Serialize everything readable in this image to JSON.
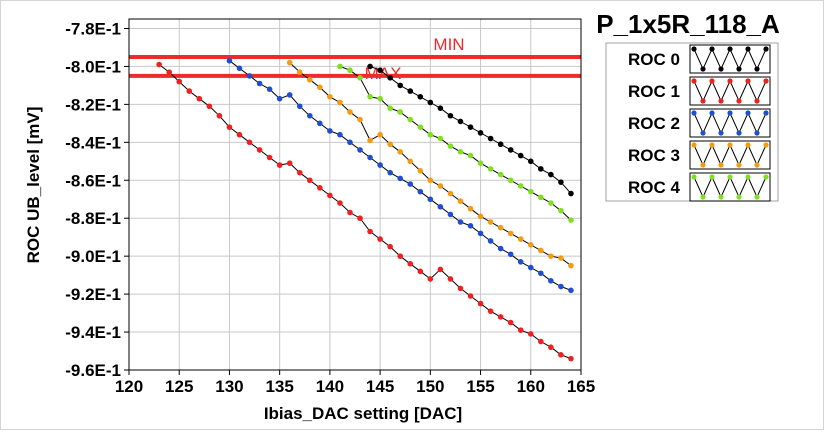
{
  "chart_data": {
    "type": "line",
    "title": "P_1x5R_118_A",
    "xlabel": "Ibias_DAC setting [DAC]",
    "ylabel": "ROC UB_level [mV]",
    "xlim": [
      120,
      165
    ],
    "ylim": [
      -0.96,
      -0.775
    ],
    "x_ticks": [
      "120",
      "125",
      "130",
      "135",
      "140",
      "145",
      "150",
      "155",
      "160",
      "165"
    ],
    "x_tick_values": [
      120,
      125,
      130,
      135,
      140,
      145,
      150,
      155,
      160,
      165
    ],
    "y_ticks": [
      "-7.8E-1",
      "-8.0E-1",
      "-8.2E-1",
      "-8.4E-1",
      "-8.6E-1",
      "-8.8E-1",
      "-9.0E-1",
      "-9.2E-1",
      "-9.4E-1",
      "-9.6E-1"
    ],
    "y_tick_values": [
      -0.78,
      -0.8,
      -0.82,
      -0.84,
      -0.86,
      -0.88,
      -0.9,
      -0.92,
      -0.94,
      -0.96
    ],
    "grid": true,
    "legend_position": "right",
    "reference_lines": [
      {
        "label": "MIN",
        "y": -0.795,
        "color": "#ee2a2a"
      },
      {
        "label": "MAX",
        "y": -0.805,
        "color": "#ee2a2a"
      }
    ],
    "series": [
      {
        "name": "ROC 0",
        "color": "#000000",
        "x": [
          144,
          145,
          146,
          147,
          148,
          149,
          150,
          151,
          152,
          153,
          154,
          155,
          156,
          157,
          158,
          159,
          160,
          161,
          162,
          163,
          164
        ],
        "y": [
          -0.8,
          -0.802,
          -0.806,
          -0.81,
          -0.813,
          -0.816,
          -0.819,
          -0.822,
          -0.826,
          -0.829,
          -0.832,
          -0.835,
          -0.838,
          -0.841,
          -0.844,
          -0.847,
          -0.85,
          -0.854,
          -0.857,
          -0.861,
          -0.867
        ]
      },
      {
        "name": "ROC 1",
        "color": "#ee2020",
        "x": [
          123,
          124,
          125,
          126,
          127,
          128,
          129,
          130,
          131,
          132,
          133,
          134,
          135,
          136,
          137,
          138,
          139,
          140,
          141,
          142,
          143,
          144,
          145,
          146,
          147,
          148,
          149,
          150,
          151,
          152,
          153,
          154,
          155,
          156,
          157,
          158,
          159,
          160,
          161,
          162,
          163,
          164
        ],
        "y": [
          -0.799,
          -0.803,
          -0.808,
          -0.813,
          -0.817,
          -0.821,
          -0.826,
          -0.832,
          -0.836,
          -0.84,
          -0.844,
          -0.848,
          -0.852,
          -0.851,
          -0.856,
          -0.86,
          -0.864,
          -0.868,
          -0.872,
          -0.877,
          -0.88,
          -0.887,
          -0.891,
          -0.895,
          -0.9,
          -0.904,
          -0.908,
          -0.912,
          -0.907,
          -0.912,
          -0.917,
          -0.921,
          -0.925,
          -0.929,
          -0.932,
          -0.935,
          -0.939,
          -0.941,
          -0.945,
          -0.948,
          -0.952,
          -0.954
        ]
      },
      {
        "name": "ROC 2",
        "color": "#1f4fd0",
        "x": [
          130,
          131,
          132,
          133,
          134,
          135,
          136,
          137,
          138,
          139,
          140,
          141,
          142,
          143,
          144,
          145,
          146,
          147,
          148,
          149,
          150,
          151,
          152,
          153,
          154,
          155,
          156,
          157,
          158,
          159,
          160,
          161,
          162,
          163,
          164
        ],
        "y": [
          -0.797,
          -0.801,
          -0.805,
          -0.809,
          -0.812,
          -0.817,
          -0.815,
          -0.821,
          -0.826,
          -0.83,
          -0.834,
          -0.836,
          -0.84,
          -0.844,
          -0.848,
          -0.852,
          -0.856,
          -0.859,
          -0.862,
          -0.866,
          -0.87,
          -0.874,
          -0.878,
          -0.882,
          -0.884,
          -0.888,
          -0.892,
          -0.896,
          -0.899,
          -0.903,
          -0.906,
          -0.909,
          -0.913,
          -0.916,
          -0.918
        ]
      },
      {
        "name": "ROC 3",
        "color": "#f39c12",
        "x": [
          136,
          137,
          138,
          139,
          140,
          141,
          142,
          143,
          144,
          145,
          146,
          147,
          148,
          149,
          150,
          151,
          152,
          153,
          154,
          155,
          156,
          157,
          158,
          159,
          160,
          161,
          162,
          163,
          164
        ],
        "y": [
          -0.798,
          -0.803,
          -0.807,
          -0.811,
          -0.816,
          -0.819,
          -0.824,
          -0.828,
          -0.839,
          -0.836,
          -0.841,
          -0.845,
          -0.85,
          -0.855,
          -0.86,
          -0.863,
          -0.867,
          -0.871,
          -0.875,
          -0.879,
          -0.882,
          -0.885,
          -0.888,
          -0.891,
          -0.894,
          -0.897,
          -0.9,
          -0.901,
          -0.905
        ]
      },
      {
        "name": "ROC 4",
        "color": "#7fe020",
        "x": [
          141,
          142,
          143,
          144,
          145,
          146,
          147,
          148,
          149,
          150,
          151,
          152,
          153,
          154,
          155,
          156,
          157,
          158,
          159,
          160,
          161,
          162,
          163,
          164
        ],
        "y": [
          -0.8,
          -0.802,
          -0.806,
          -0.816,
          -0.817,
          -0.822,
          -0.824,
          -0.828,
          -0.832,
          -0.836,
          -0.838,
          -0.842,
          -0.845,
          -0.847,
          -0.851,
          -0.854,
          -0.857,
          -0.86,
          -0.863,
          -0.866,
          -0.869,
          -0.872,
          -0.876,
          -0.881
        ]
      }
    ]
  }
}
